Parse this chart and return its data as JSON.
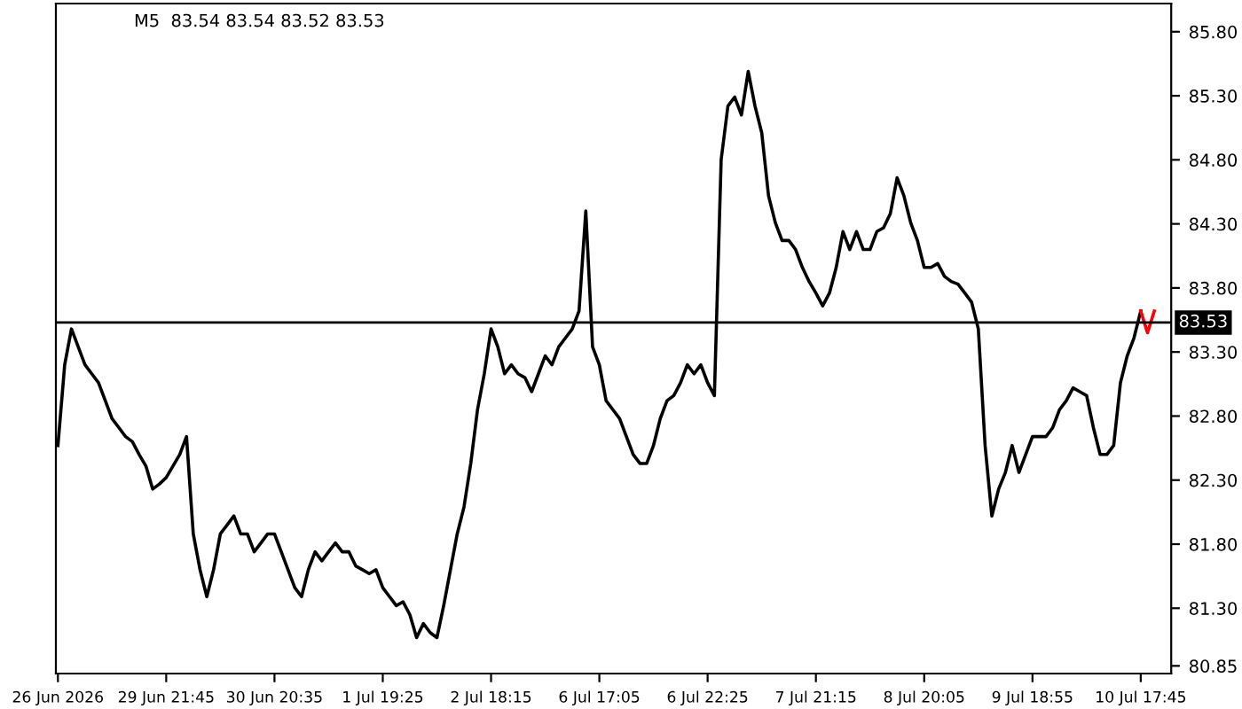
{
  "chart_data": {
    "type": "line",
    "title": "M5  83.54 83.54 83.52 83.53",
    "categories": [
      "26 Jun 2026",
      null,
      null,
      null,
      null,
      null,
      null,
      null,
      null,
      null,
      null,
      null,
      null,
      null,
      null,
      null,
      "29 Jun 21:45",
      null,
      null,
      null,
      null,
      null,
      null,
      null,
      null,
      null,
      null,
      null,
      null,
      null,
      null,
      null,
      "30 Jun 20:35",
      null,
      null,
      null,
      null,
      null,
      null,
      null,
      null,
      null,
      null,
      null,
      null,
      null,
      null,
      null,
      "1 Jul 19:25",
      null,
      null,
      null,
      null,
      null,
      null,
      null,
      null,
      null,
      null,
      null,
      null,
      null,
      null,
      null,
      "2 Jul 18:15",
      null,
      null,
      null,
      null,
      null,
      null,
      null,
      null,
      null,
      null,
      null,
      null,
      null,
      null,
      null,
      "6 Jul 17:05",
      null,
      null,
      null,
      null,
      null,
      null,
      null,
      null,
      null,
      null,
      null,
      null,
      null,
      null,
      null,
      "6 Jul 22:25",
      null,
      null,
      null,
      null,
      null,
      null,
      null,
      null,
      null,
      null,
      null,
      null,
      null,
      null,
      null,
      "7 Jul 21:15",
      null,
      null,
      null,
      null,
      null,
      null,
      null,
      null,
      null,
      null,
      null,
      null,
      null,
      null,
      null,
      "8 Jul 20:05",
      null,
      null,
      null,
      null,
      null,
      null,
      null,
      null,
      null,
      null,
      null,
      null,
      null,
      null,
      null,
      "9 Jul 18:55",
      null,
      null,
      null,
      null,
      null,
      null,
      null,
      null,
      null,
      null,
      null,
      null,
      null,
      null,
      null,
      "10 Jul 17:45",
      null,
      null
    ],
    "series": [
      {
        "color": "#000000",
        "values": [
          82.57,
          83.2,
          83.48,
          83.34,
          83.2,
          83.13,
          83.06,
          82.92,
          82.78,
          82.71,
          82.64,
          82.6,
          82.5,
          82.41,
          82.23,
          82.27,
          82.32,
          82.41,
          82.5,
          82.64,
          81.88,
          81.6,
          81.39,
          81.6,
          81.88,
          81.95,
          82.02,
          81.88,
          81.88,
          81.74,
          81.81,
          81.88,
          81.88,
          81.74,
          81.6,
          81.46,
          81.39,
          81.6,
          81.74,
          81.67,
          81.74,
          81.81,
          81.74,
          81.74,
          81.63,
          81.6,
          81.57,
          81.6,
          81.46,
          81.39,
          81.32,
          81.35,
          81.25,
          81.07,
          81.18,
          81.11,
          81.07,
          81.32,
          81.6,
          81.88,
          82.09,
          82.43,
          82.85,
          83.13,
          83.48,
          83.34,
          83.13,
          83.2,
          83.13,
          83.1,
          82.99,
          83.13,
          83.27,
          83.2,
          83.34,
          83.41,
          83.48,
          83.62,
          84.4,
          83.34,
          83.2,
          82.92,
          82.85,
          82.78,
          82.64,
          82.5,
          82.43,
          82.43,
          82.57,
          82.78,
          82.92,
          82.96,
          83.06,
          83.2,
          83.13,
          83.2,
          83.06,
          82.96,
          84.8,
          85.22,
          85.29,
          85.15,
          85.49,
          85.22,
          85.01,
          84.52,
          84.31,
          84.17,
          84.17,
          84.1,
          83.96,
          83.85,
          83.76,
          83.66,
          83.76,
          83.96,
          84.24,
          84.1,
          84.24,
          84.1,
          84.1,
          84.24,
          84.27,
          84.38,
          84.66,
          84.52,
          84.31,
          84.17,
          83.96,
          83.96,
          83.99,
          83.89,
          83.85,
          83.83,
          83.76,
          83.69,
          83.48,
          82.57,
          82.02,
          82.23,
          82.36,
          82.57,
          82.36,
          82.5,
          82.64,
          82.64,
          82.64,
          82.71,
          82.85,
          82.92,
          83.02,
          82.99,
          82.96,
          82.71,
          82.5,
          82.5,
          82.57,
          83.06,
          83.27,
          83.41,
          83.62,
          null,
          null
        ]
      },
      {
        "color": "#ff0000",
        "values": [
          null,
          null,
          null,
          null,
          null,
          null,
          null,
          null,
          null,
          null,
          null,
          null,
          null,
          null,
          null,
          null,
          null,
          null,
          null,
          null,
          null,
          null,
          null,
          null,
          null,
          null,
          null,
          null,
          null,
          null,
          null,
          null,
          null,
          null,
          null,
          null,
          null,
          null,
          null,
          null,
          null,
          null,
          null,
          null,
          null,
          null,
          null,
          null,
          null,
          null,
          null,
          null,
          null,
          null,
          null,
          null,
          null,
          null,
          null,
          null,
          null,
          null,
          null,
          null,
          null,
          null,
          null,
          null,
          null,
          null,
          null,
          null,
          null,
          null,
          null,
          null,
          null,
          null,
          null,
          null,
          null,
          null,
          null,
          null,
          null,
          null,
          null,
          null,
          null,
          null,
          null,
          null,
          null,
          null,
          null,
          null,
          null,
          null,
          null,
          null,
          null,
          null,
          null,
          null,
          null,
          null,
          null,
          null,
          null,
          null,
          null,
          null,
          null,
          null,
          null,
          null,
          null,
          null,
          null,
          null,
          null,
          null,
          null,
          null,
          null,
          null,
          null,
          null,
          null,
          null,
          null,
          null,
          null,
          null,
          null,
          null,
          null,
          null,
          null,
          null,
          null,
          null,
          null,
          null,
          null,
          null,
          null,
          null,
          null,
          null,
          null,
          null,
          null,
          null,
          null,
          null,
          null,
          null,
          null,
          null,
          83.62,
          83.45,
          83.62
        ]
      }
    ],
    "ylim": [
      80.79,
      86.02
    ],
    "yticks": [
      {
        "value": 80.85,
        "label": "80.85"
      },
      {
        "value": 81.3,
        "label": "81.30"
      },
      {
        "value": 81.8,
        "label": "81.80"
      },
      {
        "value": 82.3,
        "label": "82.30"
      },
      {
        "value": 82.8,
        "label": "82.80"
      },
      {
        "value": 83.3,
        "label": "83.30"
      },
      {
        "value": 83.8,
        "label": "83.80"
      },
      {
        "value": 84.3,
        "label": "84.30"
      },
      {
        "value": 84.8,
        "label": "84.80"
      },
      {
        "value": 85.3,
        "label": "85.30"
      },
      {
        "value": 85.8,
        "label": "85.80"
      }
    ],
    "ref_lines": [
      {
        "axis": "y",
        "value": 83.53,
        "label": "83.53",
        "color": "#000000"
      }
    ],
    "grid": false,
    "legend": false
  }
}
